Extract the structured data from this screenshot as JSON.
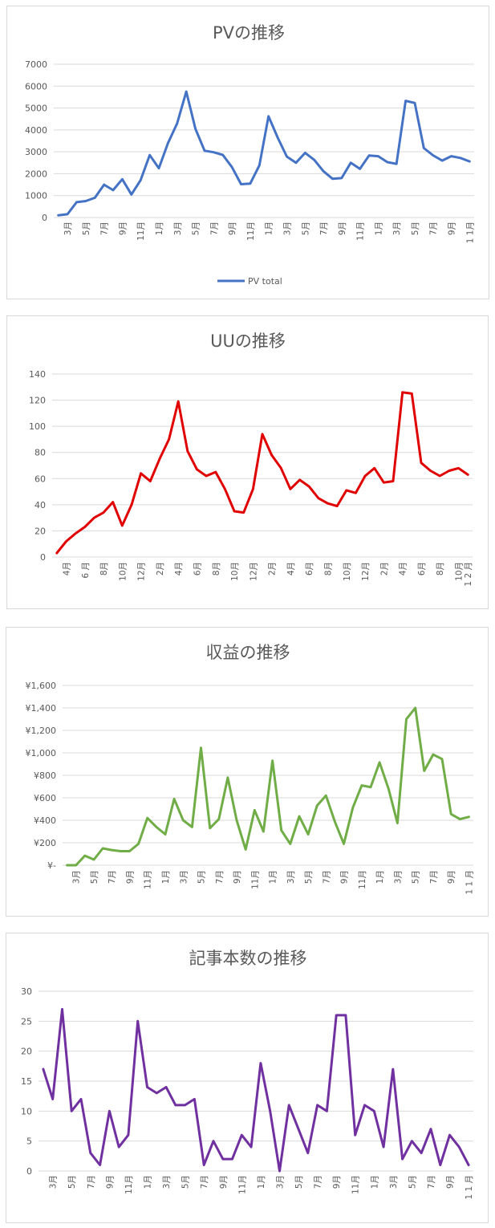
{
  "chart_data": [
    {
      "type": "line",
      "title": "PVの推移",
      "ylim": [
        0,
        7000
      ],
      "yticks": [
        "0",
        "1000",
        "2000",
        "3000",
        "4000",
        "5000",
        "6000",
        "7000"
      ],
      "xtick_labels": [
        "3月",
        "5月",
        "7月",
        "9月",
        "11月",
        "1月",
        "3月",
        "5月",
        "7月",
        "9月",
        "11月",
        "1月",
        "3月",
        "5月",
        "7月",
        "9月",
        "11月",
        "1月",
        "3月",
        "5月",
        "7月",
        "9月",
        "1 1月"
      ],
      "grid": true,
      "legend": "bottom",
      "series": [
        {
          "name": "PV total",
          "color": "#4472c4",
          "values": [
            100,
            150,
            700,
            750,
            900,
            1500,
            1250,
            1750,
            1050,
            1700,
            2850,
            2250,
            3400,
            4300,
            5750,
            4050,
            3050,
            2980,
            2860,
            2300,
            1520,
            1550,
            2380,
            4620,
            3650,
            2780,
            2500,
            2950,
            2630,
            2120,
            1770,
            1800,
            2500,
            2220,
            2830,
            2800,
            2530,
            2450,
            5330,
            5230,
            3170,
            2840,
            2600,
            2800,
            2720,
            2560
          ]
        }
      ]
    },
    {
      "type": "line",
      "title": "UUの推移",
      "ylim": [
        0,
        140
      ],
      "yticks": [
        "0",
        "20",
        "40",
        "60",
        "80",
        "100",
        "120",
        "140"
      ],
      "xtick_labels": [
        "4月",
        "6 月",
        "8月",
        "10月",
        "12月",
        "2月",
        "4月",
        "6月",
        "8月",
        "10月",
        "12月",
        "2月",
        "4月",
        "6月",
        "8月",
        "10月",
        "12月",
        "2月",
        "4月",
        "6月",
        "8月",
        "10月",
        "1 2 月"
      ],
      "grid": true,
      "series": [
        {
          "name": "",
          "color": "#e00000",
          "values": [
            3,
            12,
            18,
            23,
            30,
            34,
            42,
            24,
            40,
            64,
            58,
            75,
            90,
            119,
            81,
            67,
            62,
            65,
            52,
            35,
            34,
            52,
            94,
            78,
            68,
            52,
            59,
            54,
            45,
            41,
            39,
            51,
            49,
            62,
            68,
            57,
            58,
            126,
            125,
            72,
            66,
            62,
            66,
            68,
            63
          ]
        }
      ]
    },
    {
      "type": "line",
      "title": "収益の推移",
      "ylim": [
        0,
        1600
      ],
      "yticks": [
        "¥-",
        "¥200",
        "¥400",
        "¥600",
        "¥800",
        "¥1,000",
        "¥1,200",
        "¥1,400",
        "¥1,600"
      ],
      "xtick_labels": [
        "3月",
        "5月",
        "7月",
        "9月",
        "11月",
        "1月",
        "3月",
        "5月",
        "7月",
        "9月",
        "11月",
        "1月",
        "3月",
        "5月",
        "7月",
        "9月",
        "11月",
        "1月",
        "3月",
        "5月",
        "7月",
        "9月",
        "1 1 月"
      ],
      "grid": true,
      "series": [
        {
          "name": "",
          "color": "#70ad47",
          "values": [
            0,
            0,
            85,
            50,
            150,
            135,
            125,
            125,
            190,
            420,
            340,
            275,
            590,
            400,
            340,
            1045,
            330,
            410,
            780,
            400,
            140,
            490,
            300,
            930,
            310,
            190,
            435,
            275,
            530,
            620,
            385,
            190,
            510,
            710,
            695,
            915,
            680,
            375,
            1300,
            1400,
            840,
            985,
            945,
            455,
            410,
            430
          ]
        }
      ]
    },
    {
      "type": "line",
      "title": "記事本数の推移",
      "ylim": [
        0,
        30
      ],
      "yticks": [
        "0",
        "5",
        "10",
        "15",
        "20",
        "25",
        "30"
      ],
      "xtick_labels": [
        "3月",
        "5月",
        "7月",
        "9月",
        "11月",
        "1月",
        "3月",
        "5月",
        "7月",
        "9月",
        "11月",
        "1月",
        "3月",
        "5月",
        "7月",
        "9月",
        "11月",
        "1月",
        "3月",
        "5月",
        "7月",
        "9月",
        "1 1 月"
      ],
      "grid": true,
      "series": [
        {
          "name": "",
          "color": "#7030a0",
          "values": [
            17,
            12,
            27,
            10,
            12,
            3,
            1,
            10,
            4,
            6,
            25,
            14,
            13,
            14,
            11,
            11,
            12,
            1,
            5,
            2,
            2,
            6,
            4,
            18,
            10,
            0,
            11,
            7,
            3,
            11,
            10,
            26,
            26,
            6,
            11,
            10,
            4,
            17,
            2,
            5,
            3,
            7,
            1,
            6,
            4,
            1
          ]
        }
      ]
    }
  ]
}
